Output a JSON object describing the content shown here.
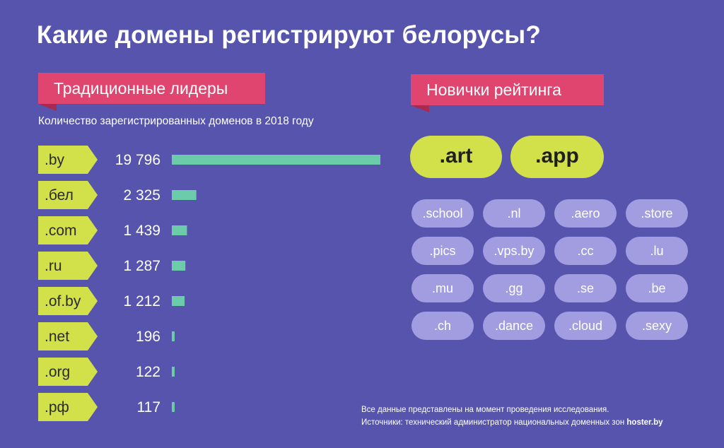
{
  "title": "Какие домены регистрируют белорусы?",
  "left_ribbon": "Традиционные лидеры",
  "right_ribbon": "Новички рейтинга",
  "subtitle": "Количество зарегистрированных доменов в 2018 году",
  "colors": {
    "background": "#5654ad",
    "ribbon": "#e0456f",
    "tag": "#d2e04a",
    "bar": "#6ccba8",
    "pill_small": "#a19de0"
  },
  "chart_data": {
    "type": "bar",
    "orientation": "horizontal",
    "categories": [
      ".by",
      ".бел",
      ".com",
      ".ru",
      ".of.by",
      ".net",
      ".org",
      ".рф"
    ],
    "values": [
      19796,
      2325,
      1439,
      1287,
      1212,
      196,
      122,
      117
    ],
    "value_labels": [
      "19 796",
      "2 325",
      "1 439",
      "1 287",
      "1 212",
      "196",
      "122",
      "117"
    ]
  },
  "newcomers": {
    "featured": [
      ".art",
      ".app"
    ],
    "others": [
      ".school",
      ".nl",
      ".aero",
      ".store",
      ".pics",
      ".vps.by",
      ".cc",
      ".lu",
      ".mu",
      ".gg",
      ".se",
      ".be",
      ".ch",
      ".dance",
      ".cloud",
      ".sexy"
    ]
  },
  "footer": {
    "line1": "Все данные представлены на момент проведения исследования.",
    "line2": "Источники: технический администратор национальных доменных зон ",
    "source": "hoster.by"
  }
}
